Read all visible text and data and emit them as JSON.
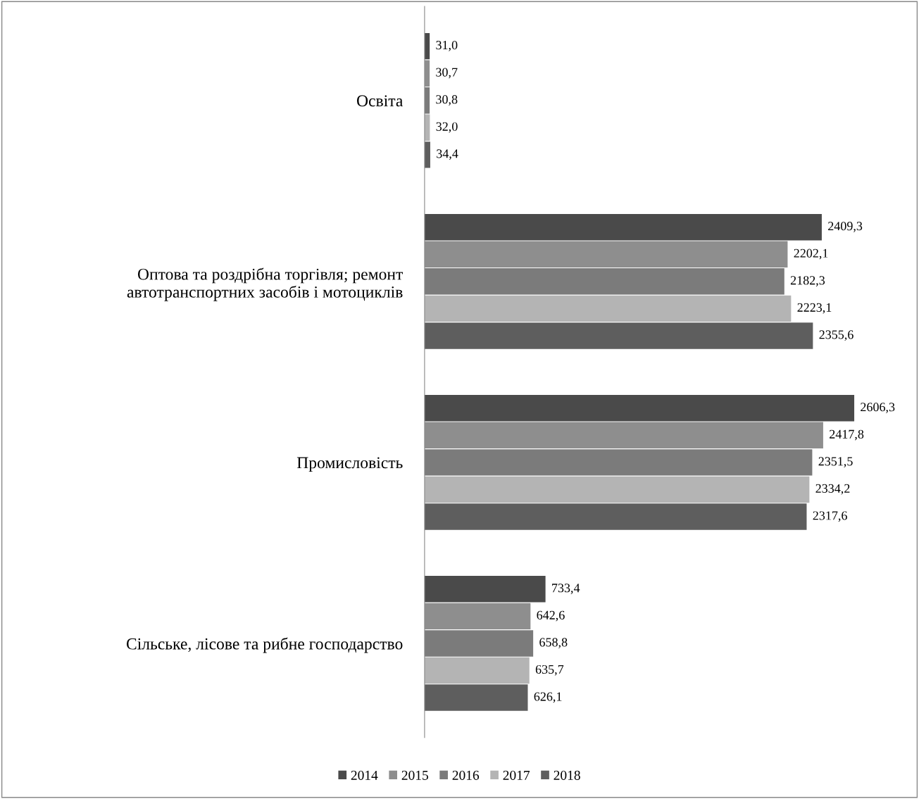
{
  "chart_data": {
    "type": "bar",
    "orientation": "horizontal",
    "tick_labels": "y",
    "legend": "bottom",
    "grid": false,
    "categories": [
      "Освіта",
      "Оптова та роздрібна торгівля; ремонт\nавтотранспортних засобів і мотоциклів",
      "Промисловість",
      "Сільське, лісове та рибне господарство"
    ],
    "series": [
      {
        "name": "2014",
        "color": "#4a4a4a",
        "values": [
          31.0,
          2409.3,
          2606.3,
          733.4
        ],
        "value_labels": [
          "31,0",
          "2409,3",
          "2606,3",
          "733,4"
        ]
      },
      {
        "name": "2015",
        "color": "#8e8e8e",
        "values": [
          30.7,
          2202.1,
          2417.8,
          642.6
        ],
        "value_labels": [
          "30,7",
          "2202,1",
          "2417,8",
          "642,6"
        ]
      },
      {
        "name": "2016",
        "color": "#7b7b7b",
        "values": [
          30.8,
          2182.3,
          2351.5,
          658.8
        ],
        "value_labels": [
          "30,8",
          "2182,3",
          "2351,5",
          "658,8"
        ]
      },
      {
        "name": "2017",
        "color": "#b4b4b4",
        "values": [
          32.0,
          2223.1,
          2334.2,
          635.7
        ],
        "value_labels": [
          "32,0",
          "2223,1",
          "2334,2",
          "635,7"
        ]
      },
      {
        "name": "2018",
        "color": "#5e5e5e",
        "values": [
          34.4,
          2355.6,
          2317.6,
          626.1
        ],
        "value_labels": [
          "34,4",
          "2355,6",
          "2317,6",
          "626,1"
        ]
      }
    ]
  }
}
